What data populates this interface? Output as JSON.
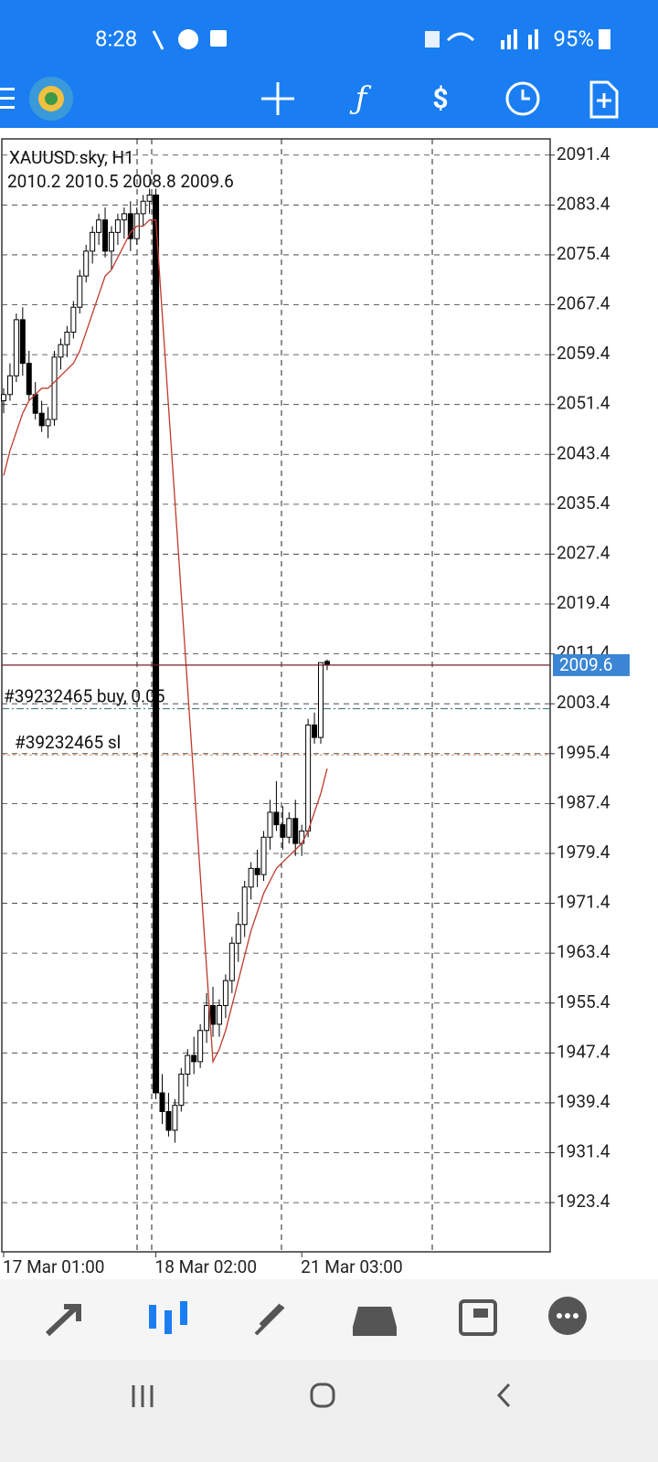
{
  "status_bar": {
    "time": "8:28",
    "battery": "95%"
  },
  "chart_data": {
    "type": "candlestick",
    "title": "XAUUSD.sky, H1",
    "categories": [
      "17 Mar 01:00",
      null,
      null,
      null,
      null,
      null,
      null,
      null,
      null,
      null,
      null,
      null,
      null,
      null,
      null,
      null,
      null,
      null,
      null,
      null,
      null,
      null,
      null,
      null,
      "18 Mar 02:00",
      null,
      null,
      null,
      null,
      null,
      null,
      null,
      null,
      null,
      null,
      null,
      null,
      null,
      null,
      null,
      null,
      null,
      null,
      null,
      null,
      null,
      null,
      "21 Mar 03:00",
      null,
      null,
      null,
      null
    ],
    "open": [
      2052,
      2053,
      2056,
      2065,
      2058,
      2053,
      2050,
      2048,
      2049,
      2059,
      2061,
      2063,
      2067,
      2072,
      2076,
      2079,
      2081,
      2076,
      2079,
      2081,
      2082,
      2078,
      2082,
      2084,
      2085,
      1941,
      1938,
      1935,
      1939,
      1944,
      1947,
      1946,
      1951,
      1955,
      1952,
      1955,
      1959,
      1965,
      1968,
      1974,
      1977,
      1976,
      1982,
      1986,
      1984,
      1982,
      1985,
      1981,
      1983,
      2000,
      1998,
      2010.2
    ],
    "high": [
      2054,
      2058,
      2066,
      2067,
      2060,
      2055,
      2052,
      2051,
      2060,
      2062,
      2064,
      2068,
      2073,
      2077,
      2080,
      2082,
      2083,
      2080,
      2082,
      2083,
      2084,
      2083,
      2085,
      2086,
      2086,
      1944,
      1941,
      1940,
      1945,
      1948,
      1950,
      1952,
      1957,
      1958,
      1956,
      1960,
      1966,
      1970,
      1975,
      1978,
      1980,
      1983,
      1988,
      1991,
      1987,
      1986,
      1988,
      1984,
      2001,
      2002,
      2010,
      2010.5
    ],
    "low": [
      2050,
      2052,
      2055,
      2056,
      2052,
      2049,
      2047,
      2046,
      2048,
      2057,
      2059,
      2062,
      2066,
      2071,
      2074,
      2077,
      2075,
      2073,
      2077,
      2078,
      2076,
      2077,
      2080,
      2082,
      1940,
      1936,
      1934,
      1933,
      1938,
      1942,
      1944,
      1945,
      1949,
      1950,
      1950,
      1953,
      1957,
      1962,
      1966,
      1972,
      1974,
      1975,
      1980,
      1983,
      1980,
      1981,
      1979,
      1979,
      1982,
      1997,
      1997,
      2008.8
    ],
    "close": [
      2053,
      2056,
      2065,
      2058,
      2053,
      2050,
      2048,
      2049,
      2059,
      2061,
      2063,
      2067,
      2072,
      2076,
      2079,
      2081,
      2076,
      2079,
      2081,
      2082,
      2078,
      2082,
      2084,
      2085,
      1941,
      1938,
      1935,
      1939,
      1944,
      1947,
      1946,
      1951,
      1955,
      1952,
      1955,
      1959,
      1965,
      1968,
      1974,
      1977,
      1976,
      1982,
      1986,
      1984,
      1982,
      1985,
      1981,
      1983,
      2000,
      1998,
      2010,
      2009.6
    ],
    "ma": {
      "color": "#c0392b",
      "values": [
        2040,
        2044,
        2047,
        2050,
        2052,
        2053,
        2054,
        2054,
        2055,
        2056,
        2057,
        2058,
        2060,
        2063,
        2066,
        2069,
        2072,
        2073,
        2075,
        2077,
        2079,
        2080,
        2080,
        2081,
        2081,
        2066,
        2051,
        2036,
        2021,
        2006,
        1991,
        1976,
        1961,
        1946,
        1948,
        1951,
        1955,
        1959,
        1963,
        1967,
        1970,
        1973,
        1975,
        1977,
        1978,
        1979,
        1980,
        1981,
        1983,
        1986,
        1989,
        1993
      ]
    },
    "order_lines": [
      {
        "value": 2002.6,
        "label": "#39232465 buy, 0.05",
        "color": "#2c6e6e"
      },
      {
        "value": 1995.2,
        "label": "#39232465 sl",
        "color": "#d98c5f"
      }
    ],
    "ylim": [
      1915.5,
      2094.0
    ],
    "yticks": [
      2091.4,
      2083.4,
      2075.4,
      2067.4,
      2059.4,
      2051.4,
      2043.4,
      2035.4,
      2027.4,
      2019.4,
      2011.4,
      2003.4,
      1995.4,
      1987.4,
      1979.4,
      1971.4,
      1963.4,
      1955.4,
      1947.4,
      1939.4,
      1931.4,
      1923.4
    ],
    "grid": true
  }
}
